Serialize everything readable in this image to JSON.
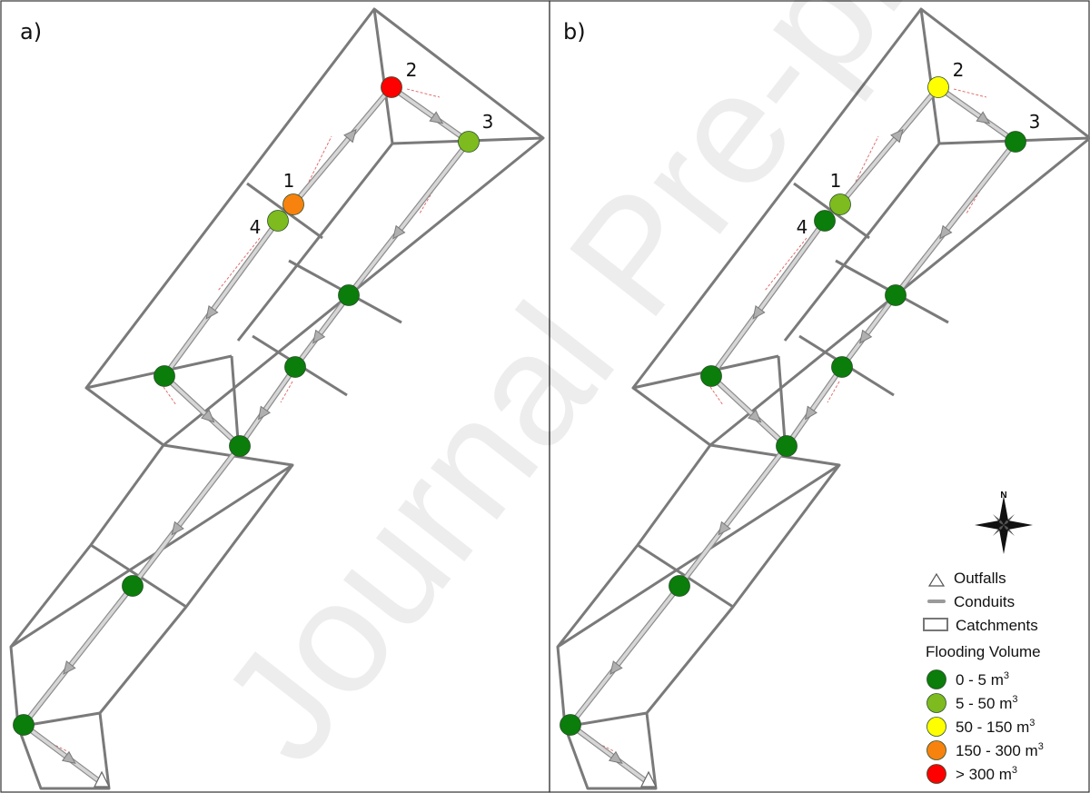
{
  "panels": [
    {
      "label": "a)",
      "nodes": [
        {
          "id": "1",
          "label": "1",
          "category": 3
        },
        {
          "id": "2",
          "label": "2",
          "category": 4
        },
        {
          "id": "3",
          "label": "3",
          "category": 1
        },
        {
          "id": "4",
          "label": "4",
          "category": 1
        },
        {
          "id": "n5",
          "label": "",
          "category": 0
        },
        {
          "id": "n6",
          "label": "",
          "category": 0
        },
        {
          "id": "n7",
          "label": "",
          "category": 0
        },
        {
          "id": "n8",
          "label": "",
          "category": 0
        },
        {
          "id": "n9",
          "label": "",
          "category": 0
        },
        {
          "id": "n10",
          "label": "",
          "category": 0
        }
      ]
    },
    {
      "label": "b)",
      "nodes": [
        {
          "id": "1",
          "label": "1",
          "category": 1
        },
        {
          "id": "2",
          "label": "2",
          "category": 2
        },
        {
          "id": "3",
          "label": "3",
          "category": 0
        },
        {
          "id": "4",
          "label": "4",
          "category": 0
        },
        {
          "id": "n5",
          "label": "",
          "category": 0
        },
        {
          "id": "n6",
          "label": "",
          "category": 0
        },
        {
          "id": "n7",
          "label": "",
          "category": 0
        },
        {
          "id": "n8",
          "label": "",
          "category": 0
        },
        {
          "id": "n9",
          "label": "",
          "category": 0
        },
        {
          "id": "n10",
          "label": "",
          "category": 0
        }
      ]
    }
  ],
  "legend": {
    "north_label": "N",
    "items": [
      {
        "icon": "outfall-triangle-icon",
        "label": "Outfalls"
      },
      {
        "icon": "conduit-line-icon",
        "label": "Conduits"
      },
      {
        "icon": "catchment-rectangle-icon",
        "label": "Catchments"
      }
    ],
    "flooding_title": "Flooding Volume",
    "flooding_classes": [
      {
        "label": "0 - 5 m",
        "sup": "3",
        "color": "#0a7d0a"
      },
      {
        "label": "5 - 50 m",
        "sup": "3",
        "color": "#7dbb1f"
      },
      {
        "label": "50 - 150 m",
        "sup": "3",
        "color": "#ffff00"
      },
      {
        "label": "150 - 300 m",
        "sup": "3",
        "color": "#f7820e"
      },
      {
        "label": "> 300 m",
        "sup": "3",
        "color": "#ff0000"
      }
    ]
  },
  "watermark": "Journal Pre-proofs",
  "colors": {
    "catchment_stroke": "#7a7a7a",
    "conduit": "#b4b4b4",
    "flow_line": "#e06060"
  }
}
